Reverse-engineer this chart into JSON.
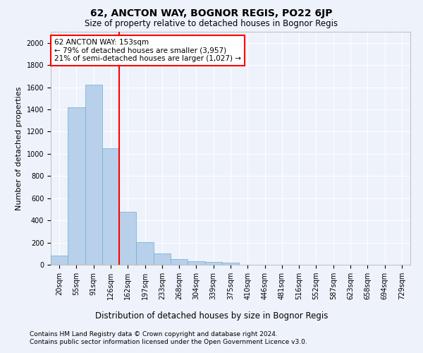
{
  "title": "62, ANCTON WAY, BOGNOR REGIS, PO22 6JP",
  "subtitle": "Size of property relative to detached houses in Bognor Regis",
  "xlabel": "Distribution of detached houses by size in Bognor Regis",
  "ylabel": "Number of detached properties",
  "categories": [
    "20sqm",
    "55sqm",
    "91sqm",
    "126sqm",
    "162sqm",
    "197sqm",
    "233sqm",
    "268sqm",
    "304sqm",
    "339sqm",
    "375sqm",
    "410sqm",
    "446sqm",
    "481sqm",
    "516sqm",
    "552sqm",
    "587sqm",
    "623sqm",
    "658sqm",
    "694sqm",
    "729sqm"
  ],
  "values": [
    80,
    1420,
    1620,
    1050,
    480,
    205,
    100,
    48,
    35,
    25,
    20,
    0,
    0,
    0,
    0,
    0,
    0,
    0,
    0,
    0,
    0
  ],
  "bar_color": "#b8d0ea",
  "bar_edge_color": "#6aaed6",
  "vline_x": 3.5,
  "vline_color": "red",
  "annotation_text": "62 ANCTON WAY: 153sqm\n← 79% of detached houses are smaller (3,957)\n21% of semi-detached houses are larger (1,027) →",
  "annotation_box_color": "white",
  "annotation_box_edge_color": "red",
  "ylim": [
    0,
    2100
  ],
  "yticks": [
    0,
    200,
    400,
    600,
    800,
    1000,
    1200,
    1400,
    1600,
    1800,
    2000
  ],
  "footer1": "Contains HM Land Registry data © Crown copyright and database right 2024.",
  "footer2": "Contains public sector information licensed under the Open Government Licence v3.0.",
  "background_color": "#eef2fb",
  "grid_color": "#ffffff",
  "title_fontsize": 10,
  "subtitle_fontsize": 8.5,
  "axis_label_fontsize": 8,
  "tick_fontsize": 7,
  "footer_fontsize": 6.5,
  "annot_fontsize": 7.5
}
